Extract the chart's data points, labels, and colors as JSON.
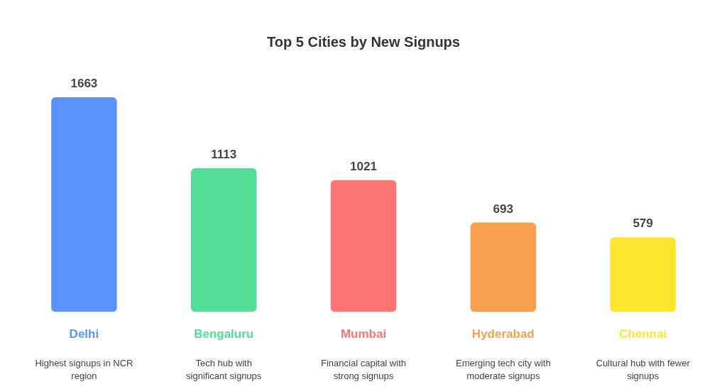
{
  "chart_data": {
    "type": "bar",
    "title": "Top 5 Cities by New Signups",
    "categories": [
      "Delhi",
      "Bengaluru",
      "Mumbai",
      "Hyderabad",
      "Chennai"
    ],
    "values": [
      1663,
      1113,
      1021,
      693,
      579
    ],
    "colors": [
      "#5b93fa",
      "#52de97",
      "#ff7474",
      "#f7a04e",
      "#ffe62e"
    ],
    "data_labels": true,
    "annotations": [
      "Highest signups in NCR region",
      "Tech hub with significant signups",
      "Financial capital with strong signups",
      "Emerging tech city with moderate signups",
      "Cultural hub with fewer signups"
    ]
  }
}
